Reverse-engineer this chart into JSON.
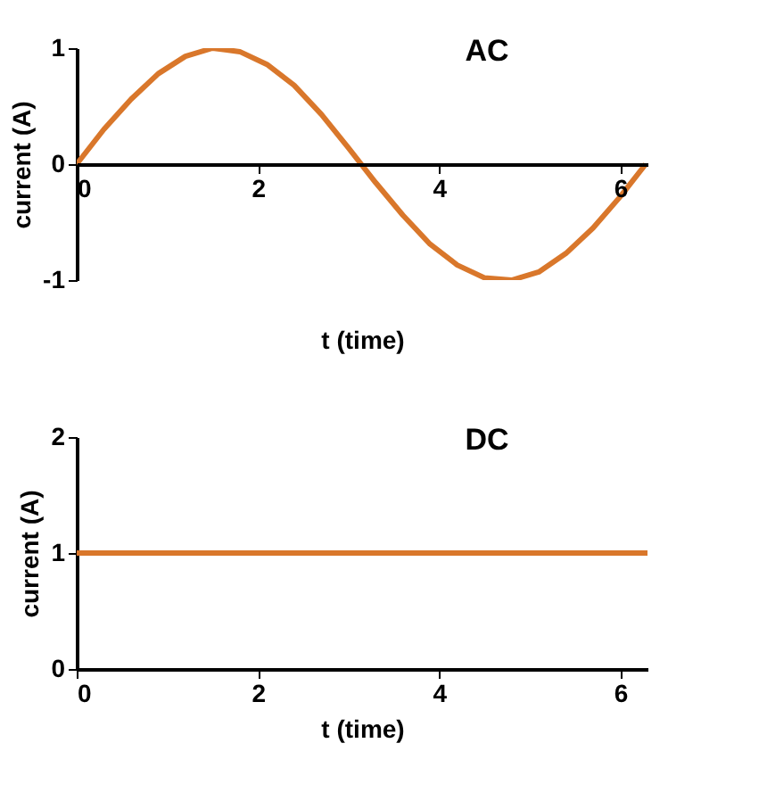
{
  "chart_data": [
    {
      "type": "line",
      "title": "AC",
      "xlabel": "t (time)",
      "ylabel": "current (A)",
      "color": "#d9772b",
      "x": [
        0,
        0.3,
        0.6,
        0.9,
        1.2,
        1.5,
        1.8,
        2.1,
        2.4,
        2.7,
        3.0,
        3.3,
        3.6,
        3.9,
        4.2,
        4.5,
        4.8,
        5.1,
        5.4,
        5.7,
        6.0,
        6.28
      ],
      "values": [
        0,
        0.3,
        0.56,
        0.78,
        0.93,
        1.0,
        0.97,
        0.86,
        0.68,
        0.43,
        0.14,
        -0.16,
        -0.44,
        -0.69,
        -0.87,
        -0.98,
        -1.0,
        -0.93,
        -0.77,
        -0.55,
        -0.28,
        0
      ],
      "xlim": [
        0,
        6.3
      ],
      "ylim": [
        -1,
        1
      ],
      "xticks": [
        0,
        2,
        4,
        6
      ],
      "yticks": [
        -1,
        0,
        1
      ],
      "grid": false
    },
    {
      "type": "line",
      "title": "DC",
      "xlabel": "t (time)",
      "ylabel": "current (A)",
      "color": "#d9772b",
      "x": [
        0,
        6.3
      ],
      "values": [
        1,
        1
      ],
      "xlim": [
        0,
        6.3
      ],
      "ylim": [
        0,
        2
      ],
      "xticks": [
        0,
        2,
        4,
        6
      ],
      "yticks": [
        0,
        1,
        2
      ],
      "grid": false
    }
  ]
}
